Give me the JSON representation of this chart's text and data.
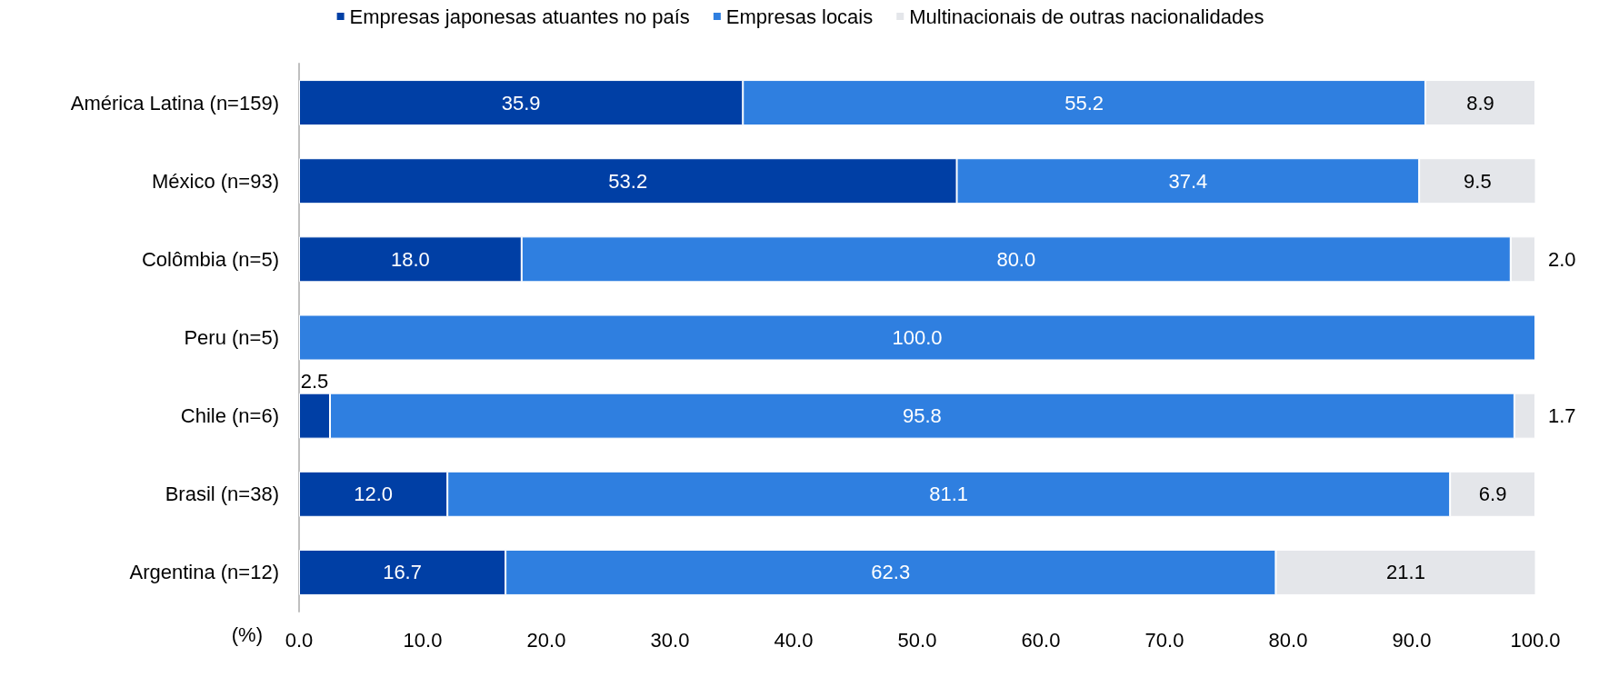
{
  "chart_data": {
    "type": "bar",
    "orientation": "horizontal",
    "stacked": true,
    "legend": "top",
    "grid": false,
    "xlabel": "(%)",
    "categories": [
      "América Latina (n=159)",
      "México (n=93)",
      "Colômbia (n=5)",
      "Peru (n=5)",
      "Chile (n=6)",
      "Brasil (n=38)",
      "Argentina (n=12)"
    ],
    "xlim": [
      0,
      100
    ],
    "xticks": [
      {
        "value": 0,
        "label": "0.0"
      },
      {
        "value": 10,
        "label": "10.0"
      },
      {
        "value": 20,
        "label": "20.0"
      },
      {
        "value": 30,
        "label": "30.0"
      },
      {
        "value": 40,
        "label": "40.0"
      },
      {
        "value": 50,
        "label": "50.0"
      },
      {
        "value": 60,
        "label": "60.0"
      },
      {
        "value": 70,
        "label": "70.0"
      },
      {
        "value": 80,
        "label": "80.0"
      },
      {
        "value": 90,
        "label": "90.0"
      },
      {
        "value": 100,
        "label": "100.0"
      }
    ],
    "series": [
      {
        "name": "Empresas japonesas atuantes no país",
        "color": "#003fa5",
        "values": [
          35.9,
          53.2,
          18.0,
          0,
          2.5,
          12.0,
          16.7
        ],
        "value_labels": [
          "35.9",
          "53.2",
          "18.0",
          null,
          "2.5",
          "12.0",
          "16.7"
        ]
      },
      {
        "name": "Empresas locais",
        "color": "#2f7fe0",
        "values": [
          55.2,
          37.4,
          80.0,
          100.0,
          95.8,
          81.1,
          62.3
        ],
        "value_labels": [
          "55.2",
          "37.4",
          "80.0",
          "100.0",
          "95.8",
          "81.1",
          "62.3"
        ]
      },
      {
        "name": "Multinacionais de outras nacionalidades",
        "color": "#e4e6ea",
        "values": [
          8.9,
          9.5,
          2.0,
          0,
          1.7,
          6.9,
          21.1
        ],
        "value_labels": [
          "8.9",
          "9.5",
          "2.0",
          null,
          "1.7",
          "6.9",
          "21.1"
        ]
      }
    ]
  }
}
